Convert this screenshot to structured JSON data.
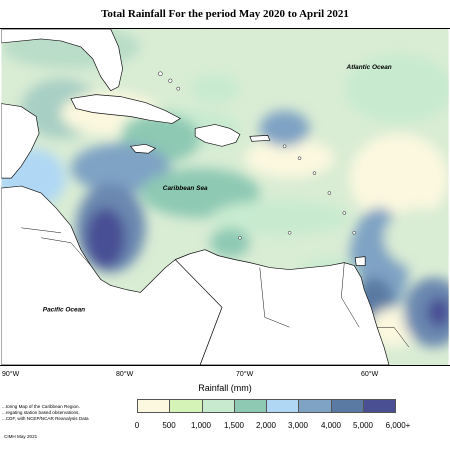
{
  "title": "Total Rainfall For the period May 2020 to April 2021",
  "map": {
    "labels": {
      "atlantic": "Atlantic Ocean",
      "caribbean": "Caribbean Sea",
      "pacific": "Pacific Ocean"
    },
    "longitudes": [
      "90°W",
      "80°W",
      "70°W",
      "60°W"
    ]
  },
  "legend": {
    "title": "Rainfall (mm)",
    "ticks": [
      "0",
      "500",
      "1,000",
      "1,500",
      "2,000",
      "3,000",
      "4,000",
      "5,000",
      "6,000+"
    ],
    "colors": [
      "#fbf8df",
      "#d6f3b7",
      "#c8ebd0",
      "#8ec9b4",
      "#b0d8f4",
      "#7fa3c4",
      "#5a7aa3",
      "#4a4f94"
    ]
  },
  "credits": {
    "line1": "...toring Map of the Caribbean Region.",
    "line2": "...regating station based observations,",
    "line3": "...CDF, with NCEP/NCAR Reanalysis Data",
    "copyright": "CIMH May 2021"
  }
}
